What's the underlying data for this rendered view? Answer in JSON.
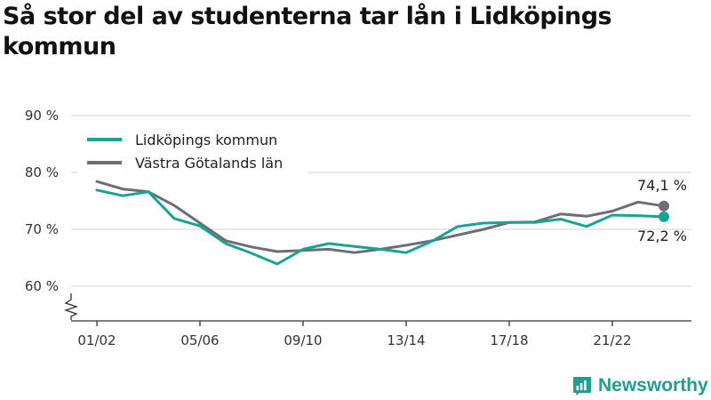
{
  "title": "Så stor del av studenterna tar lån i Lidköpings kommun",
  "brand": {
    "name": "Newsworthy",
    "icon": "newsworthy-logo-icon",
    "color": "#1f9e92"
  },
  "chart_data": {
    "type": "line",
    "title": "Så stor del av studenterna tar lån i Lidköpings kommun",
    "xlabel": "",
    "ylabel": "",
    "x": [
      "01/02",
      "02/03",
      "03/04",
      "04/05",
      "05/06",
      "06/07",
      "07/08",
      "08/09",
      "09/10",
      "10/11",
      "11/12",
      "12/13",
      "13/14",
      "14/15",
      "15/16",
      "16/17",
      "17/18",
      "18/19",
      "19/20",
      "20/21",
      "21/22",
      "22/23",
      "23/24"
    ],
    "x_ticks": [
      "01/02",
      "05/06",
      "09/10",
      "13/14",
      "17/18",
      "21/22"
    ],
    "y_ticks": [
      "60 %",
      "70 %",
      "80 %",
      "90 %"
    ],
    "y_tick_values": [
      60,
      70,
      80,
      90
    ],
    "ylim": [
      55,
      92
    ],
    "y_axis_break": true,
    "grid": true,
    "legend_position": "top-left",
    "series": [
      {
        "name": "Lidköpings kommun",
        "color": "#1aa394",
        "values": [
          76.9,
          75.9,
          76.6,
          71.9,
          70.6,
          67.5,
          65.8,
          63.9,
          66.5,
          67.5,
          67.0,
          66.5,
          65.9,
          67.9,
          70.5,
          71.1,
          71.2,
          71.2,
          71.8,
          70.5,
          72.5,
          72.4,
          72.2
        ],
        "end_label": "72,2 %"
      },
      {
        "name": "Västra Götalands län",
        "color": "#6e6d75",
        "values": [
          78.4,
          77.1,
          76.6,
          74.2,
          71.1,
          68.0,
          66.9,
          66.1,
          66.3,
          66.5,
          65.9,
          66.5,
          67.2,
          68.0,
          69.0,
          70.0,
          71.2,
          71.3,
          72.7,
          72.3,
          73.2,
          74.8,
          74.1
        ],
        "end_label": "74,1 %"
      }
    ]
  }
}
